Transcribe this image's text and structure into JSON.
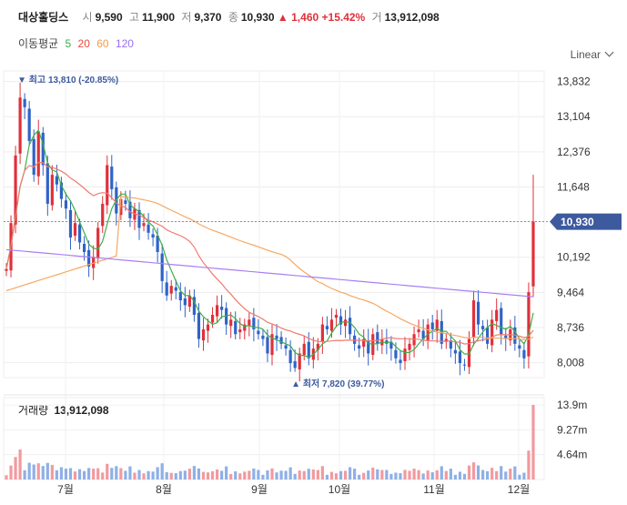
{
  "header": {
    "name": "대상홀딩스",
    "open_label": "시",
    "open": "9,590",
    "high_label": "고",
    "high": "11,900",
    "low_label": "저",
    "low": "9,370",
    "close_label": "종",
    "close": "10,930",
    "change": "▲ 1,460",
    "change_pct": "+15.42%",
    "volume_label": "거",
    "volume": "13,912,098"
  },
  "ma_legend": {
    "label": "이동평균",
    "items": [
      {
        "period": "5",
        "color": "#3fae49"
      },
      {
        "period": "20",
        "color": "#e8493f"
      },
      {
        "period": "60",
        "color": "#f39c4a"
      },
      {
        "period": "120",
        "color": "#9b6cf0"
      }
    ]
  },
  "scale_selector": "Linear",
  "volume_panel": {
    "label": "거래량",
    "value": "13,912,098",
    "ticks": [
      "13.9m",
      "9.27m",
      "4.64m"
    ]
  },
  "colors": {
    "up": "#e0303a",
    "down": "#2f63c8",
    "current_price_bg": "#3d5a9e"
  },
  "chart_data": {
    "type": "candlestick",
    "y_ticks": [
      8008,
      8736,
      9464,
      10192,
      10930,
      11648,
      12376,
      13104,
      13832
    ],
    "y_tick_labels": [
      "8,008",
      "8,736",
      "9,464",
      "10,192",
      "10,930",
      "11,648",
      "12,376",
      "13,104",
      "13,832"
    ],
    "ylim": [
      7700,
      14050
    ],
    "x_ticks": [
      "7월",
      "8월",
      "9월",
      "10월",
      "11월",
      "12월"
    ],
    "current_price": 10930,
    "current_price_label": "10,930",
    "high_marker": {
      "price": 13810,
      "text": "최고 13,810 (-20.85%)"
    },
    "low_marker": {
      "price": 7820,
      "text": "최저 7,820 (39.77%)"
    },
    "closes": [
      9950,
      10900,
      12300,
      13500,
      13300,
      12600,
      11900,
      12800,
      12100,
      11300,
      11900,
      11700,
      11400,
      11200,
      10600,
      10900,
      10500,
      10300,
      10000,
      10200,
      10800,
      11300,
      12100,
      11600,
      11100,
      11400,
      11300,
      11000,
      11200,
      10800,
      10900,
      10700,
      10600,
      10300,
      9700,
      9400,
      9600,
      9500,
      9300,
      9200,
      9400,
      9000,
      8500,
      8700,
      8800,
      9000,
      9200,
      9100,
      8800,
      8900,
      8600,
      8700,
      8800,
      8900,
      8700,
      8600,
      8500,
      8200,
      8600,
      8500,
      8400,
      8300,
      8000,
      7900,
      8200,
      8400,
      8100,
      8300,
      8400,
      8800,
      8700,
      8900,
      9000,
      8800,
      8900,
      8600,
      8400,
      8300,
      8500,
      8200,
      8600,
      8400,
      8500,
      8400,
      8300,
      8100,
      8000,
      8300,
      8400,
      8600,
      8700,
      8500,
      8800,
      8700,
      8900,
      8400,
      8500,
      8300,
      8200,
      8000,
      7950,
      8500,
      9300,
      8800,
      8700,
      8400,
      8900,
      9100,
      8600,
      8500,
      8700,
      8400,
      8300,
      8100,
      9470,
      10930
    ],
    "volume_max": 13912098,
    "volume_ticks": [
      13900000,
      9270000,
      4640000
    ]
  }
}
